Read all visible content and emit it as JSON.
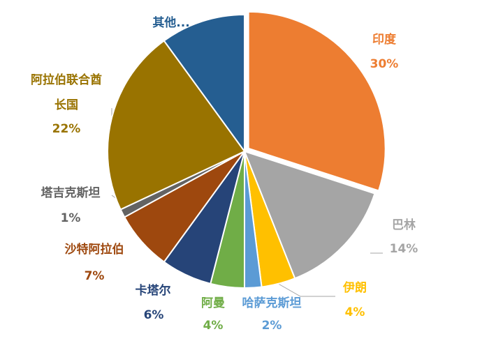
{
  "chart_data": {
    "type": "pie",
    "categories": [
      "印度",
      "巴林",
      "伊朗",
      "哈萨克斯坦",
      "阿曼",
      "卡塔尔",
      "沙特阿拉伯",
      "塔吉克斯坦",
      "阿拉伯联合酋长国",
      "其他..."
    ],
    "values": [
      30,
      14,
      4,
      2,
      4,
      6,
      7,
      1,
      22,
      10
    ],
    "value_labels": [
      "30%",
      "14%",
      "4%",
      "2%",
      "4%",
      "6%",
      "7%",
      "1%",
      "22%",
      null
    ],
    "colors": [
      "#ed7d31",
      "#a5a5a5",
      "#ffc000",
      "#5b9bd5",
      "#70ad47",
      "#264478",
      "#9e480e",
      "#636363",
      "#997300",
      "#255e91"
    ]
  }
}
